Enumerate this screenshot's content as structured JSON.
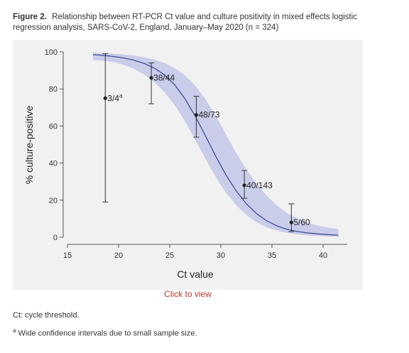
{
  "caption": {
    "label": "Figure 2.",
    "text": "Relationship between RT-PCR Ct value and culture positivity in mixed effects logistic regression analysis, SARS-CoV-2, England, January–May 2020 (n = 324)"
  },
  "link": {
    "label": "Click to view"
  },
  "footnotes": {
    "ct": "Ct: cycle threshold.",
    "a_mark": "a",
    "a_text": "Wide confidence intervals due to small sample size."
  },
  "chart_data": {
    "type": "scatter",
    "xlabel": "Ct value",
    "ylabel": "% culture-positive",
    "xlim": [
      15,
      42
    ],
    "ylim": [
      0,
      100
    ],
    "xticks": [
      "15",
      "20",
      "25",
      "30",
      "35",
      "40"
    ],
    "yticks": [
      "0",
      "20",
      "40",
      "60",
      "80",
      "100"
    ],
    "grid": false,
    "points": [
      {
        "x": 18.7,
        "y": 75,
        "lower": 19,
        "upper": 99,
        "label": "3/4",
        "superscript": "a"
      },
      {
        "x": 23.2,
        "y": 86,
        "lower": 72,
        "upper": 94,
        "label": "38/44",
        "superscript": ""
      },
      {
        "x": 27.6,
        "y": 66,
        "lower": 54,
        "upper": 76,
        "label": "48/73",
        "superscript": ""
      },
      {
        "x": 32.3,
        "y": 28,
        "lower": 21,
        "upper": 36,
        "label": "40/143",
        "superscript": ""
      },
      {
        "x": 36.9,
        "y": 8,
        "lower": 3,
        "upper": 18,
        "label": "5/60",
        "superscript": ""
      }
    ],
    "fit_curve": {
      "x": [
        17.5,
        18.5,
        19.5,
        20.5,
        21.5,
        22.5,
        23.5,
        24.5,
        25.5,
        26.5,
        27.5,
        28.5,
        29.5,
        30.5,
        31.5,
        32.5,
        33.5,
        34.5,
        35.5,
        36.5,
        37.5,
        38.5,
        39.5,
        40.5,
        41.5
      ],
      "y": [
        98.5,
        98.1,
        97.5,
        96.7,
        95.5,
        93.8,
        91.2,
        87.5,
        82.2,
        74.6,
        65.3,
        54.6,
        43.7,
        33.6,
        25.0,
        18.0,
        12.7,
        8.8,
        6.1,
        4.2,
        3.1,
        2.3,
        1.8,
        1.4,
        1.1
      ],
      "lower": [
        95.5,
        95.2,
        94.5,
        93.0,
        90.8,
        87.8,
        83.6,
        78.2,
        71.2,
        62.5,
        52.6,
        42.3,
        32.5,
        24.0,
        17.2,
        11.9,
        8.0,
        5.3,
        3.5,
        2.3,
        1.5,
        1.0,
        0.7,
        0.5,
        0.4
      ],
      "upper": [
        99.5,
        99.3,
        99.0,
        98.6,
        98.0,
        97.1,
        95.8,
        93.9,
        91.2,
        87.3,
        81.8,
        74.5,
        65.5,
        55.5,
        45.5,
        36.5,
        28.8,
        22.3,
        17.0,
        13.0,
        10.0,
        7.8,
        6.3,
        5.2,
        4.4
      ]
    },
    "colors": {
      "band": "#c9cde9",
      "line": "#3f4a9b",
      "marker": "#222222"
    }
  }
}
